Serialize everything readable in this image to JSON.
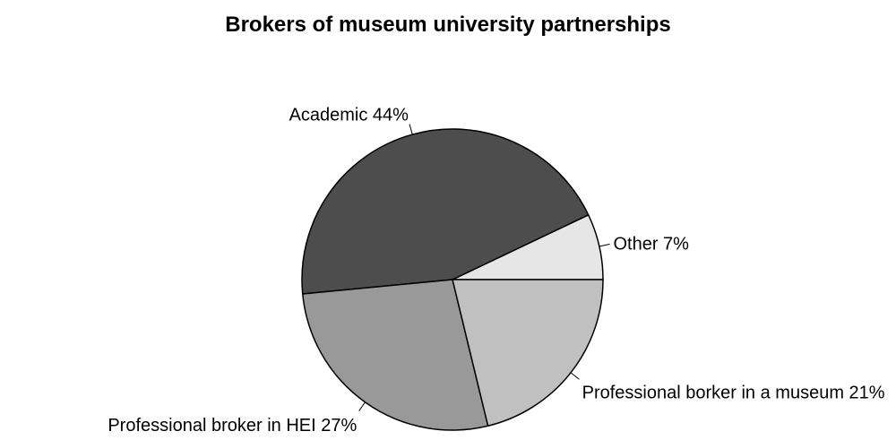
{
  "chart_data": {
    "type": "pie",
    "title": "Brokers of museum university partnerships",
    "slices": [
      {
        "label": "Other",
        "value": 7,
        "display": "Other 7%",
        "color": "#e6e6e6"
      },
      {
        "label": "Academic",
        "value": 44,
        "display": "Academic 44%",
        "color": "#4d4d4d"
      },
      {
        "label": "Professional broker in HEI",
        "value": 27,
        "display": "Professional broker in HEI 27%",
        "color": "#999999"
      },
      {
        "label": "Professional borker in a museum",
        "value": 21,
        "display": "Professional borker in a museum 21%",
        "color": "#c0c0c0"
      }
    ],
    "start_angle_deg": 0,
    "direction": "counterclockwise",
    "legend": "none",
    "stroke_color": "#000000"
  }
}
